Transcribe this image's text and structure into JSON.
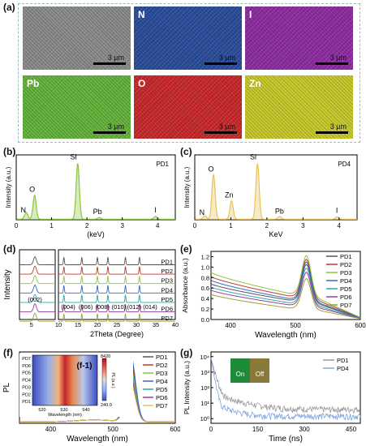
{
  "panel_a": {
    "label": "(a)",
    "tiles": [
      {
        "element": "",
        "color": "#8a8a8a",
        "scale": "3 µm"
      },
      {
        "element": "N",
        "color": "#2a4c9a",
        "scale": "3 µm"
      },
      {
        "element": "I",
        "color": "#8d2ca0",
        "scale": "3 µm"
      },
      {
        "element": "Pb",
        "color": "#63b23a",
        "scale": "3 µm"
      },
      {
        "element": "O",
        "color": "#c8282a",
        "scale": "3 µm"
      },
      {
        "element": "Zn",
        "color": "#c6c828",
        "scale": "3 µm"
      }
    ]
  },
  "panel_labels": {
    "b": "(b)",
    "c": "(c)",
    "d": "(d)",
    "e": "(e)",
    "f": "(f)",
    "g": "(g)"
  },
  "chart_data": [
    {
      "id": "b",
      "type": "line",
      "tag": "PD1",
      "xlabel": "(keV)",
      "ylabel": "Intensity (a.u.)",
      "xlim": [
        0,
        4.5
      ],
      "xticks": [
        0,
        1,
        2,
        3,
        4
      ],
      "color": "#8cc63f",
      "peaks": [
        {
          "x": 0.28,
          "h": 0.12
        },
        {
          "x": 0.52,
          "h": 0.42
        },
        {
          "x": 1.74,
          "h": 0.98
        },
        {
          "x": 2.35,
          "h": 0.03
        },
        {
          "x": 3.94,
          "h": 0.05
        }
      ],
      "annotations": [
        {
          "text": "N",
          "x": 0.2,
          "y": 0.1
        },
        {
          "text": "O",
          "x": 0.45,
          "y": 0.46
        },
        {
          "text": "Si",
          "x": 1.62,
          "y": 1.03
        },
        {
          "text": "Pb",
          "x": 2.3,
          "y": 0.07
        },
        {
          "text": "I",
          "x": 3.94,
          "y": 0.1
        }
      ]
    },
    {
      "id": "c",
      "type": "line",
      "tag": "PD4",
      "xlabel": "KeV",
      "ylabel": "Intensity (a.u.)",
      "xlim": [
        0,
        4.5
      ],
      "xticks": [
        0,
        1,
        2,
        3,
        4
      ],
      "color": "#e8c25a",
      "peaks": [
        {
          "x": 0.28,
          "h": 0.06
        },
        {
          "x": 0.52,
          "h": 0.78
        },
        {
          "x": 1.02,
          "h": 0.32
        },
        {
          "x": 1.74,
          "h": 0.98
        },
        {
          "x": 2.35,
          "h": 0.05
        },
        {
          "x": 3.94,
          "h": 0.04
        }
      ],
      "annotations": [
        {
          "text": "N",
          "x": 0.2,
          "y": 0.06
        },
        {
          "text": "O",
          "x": 0.45,
          "y": 0.82
        },
        {
          "text": "Zn",
          "x": 0.95,
          "y": 0.36
        },
        {
          "text": "Si",
          "x": 1.62,
          "y": 1.03
        },
        {
          "text": "Pb",
          "x": 2.35,
          "y": 0.08
        },
        {
          "text": "I",
          "x": 3.94,
          "y": 0.09
        }
      ]
    },
    {
      "id": "d",
      "type": "line",
      "xlabel": "2Theta (Degree)",
      "ylabel": "Intensity",
      "xlim_left": [
        4,
        7
      ],
      "xlim_right": [
        10,
        40
      ],
      "xticks_left": [
        5
      ],
      "xticks_right": [
        10,
        15,
        20,
        25,
        30,
        35,
        40
      ],
      "peak_left": 5.3,
      "peaks_right": [
        11.4,
        16.0,
        20.0,
        22.7,
        27.2,
        30.8
      ],
      "peak_labels": [
        {
          "text": "(002)",
          "x": 5.3
        },
        {
          "text": "(004)",
          "x": 12.5
        },
        {
          "text": "(006)",
          "x": 17.0
        },
        {
          "text": "(008)",
          "x": 21.3
        },
        {
          "text": "(010)",
          "x": 25.5
        },
        {
          "text": "(012) (014)",
          "x": 31.5
        }
      ],
      "series": [
        {
          "name": "PD1",
          "color": "#555555"
        },
        {
          "name": "PD2",
          "color": "#c0392b"
        },
        {
          "name": "PD3",
          "color": "#8cc63f"
        },
        {
          "name": "PD4",
          "color": "#3a64c8"
        },
        {
          "name": "PD5",
          "color": "#2aa8a8"
        },
        {
          "name": "PD6",
          "color": "#9b3c9b"
        },
        {
          "name": "PD7",
          "color": "#a0a030"
        }
      ]
    },
    {
      "id": "e",
      "type": "line",
      "xlabel": "Wavelength (nm)",
      "ylabel": "Absorbance (a.u.)",
      "xlim": [
        370,
        600
      ],
      "ylim": [
        0,
        1.3
      ],
      "xticks": [
        400,
        500,
        600
      ],
      "yticks": [
        0.0,
        0.2,
        0.4,
        0.6,
        0.8,
        1.0,
        1.2
      ],
      "series": [
        {
          "name": "PD1",
          "color": "#555555",
          "start": 0.68,
          "trough": 0.37,
          "peak": 1.05
        },
        {
          "name": "PD2",
          "color": "#c0392b",
          "start": 0.82,
          "trough": 0.45,
          "peak": 1.15
        },
        {
          "name": "PD3",
          "color": "#8cc63f",
          "start": 0.9,
          "trough": 0.5,
          "peak": 1.22
        },
        {
          "name": "PD4",
          "color": "#3a64c8",
          "start": 0.75,
          "trough": 0.4,
          "peak": 1.1
        },
        {
          "name": "PD5",
          "color": "#2aa8a8",
          "start": 0.62,
          "trough": 0.32,
          "peak": 0.98
        },
        {
          "name": "PD6",
          "color": "#9b3c9b",
          "start": 0.56,
          "trough": 0.28,
          "peak": 0.9
        },
        {
          "name": "PD7",
          "color": "#a0a030",
          "start": 0.48,
          "trough": 0.22,
          "peak": 0.78
        }
      ]
    },
    {
      "id": "f",
      "type": "line",
      "xlabel": "Wavelength (nm)",
      "ylabel": "PL",
      "xlim": [
        350,
        600
      ],
      "xticks": [
        400,
        500,
        600
      ],
      "series": [
        {
          "name": "PD1",
          "color": "#555555",
          "peak": 0.95
        },
        {
          "name": "PD2",
          "color": "#c0392b",
          "peak": 0.88
        },
        {
          "name": "PD3",
          "color": "#8cc63f",
          "peak": 0.8
        },
        {
          "name": "PD4",
          "color": "#3a64c8",
          "peak": 1.0
        },
        {
          "name": "PD5",
          "color": "#2aa8a8",
          "peak": 0.72
        },
        {
          "name": "PD6",
          "color": "#9b3c9b",
          "peak": 0.65
        },
        {
          "name": "PD7",
          "color": "#e8c25a",
          "peak": 0.58
        }
      ],
      "inset": {
        "label": "(f-1)",
        "type": "heatmap",
        "xlabel": "Wavelength (nm)",
        "xticks": [
          520,
          530,
          540
        ],
        "rows": [
          "PD7",
          "PD6",
          "PD5",
          "PD4",
          "PD3",
          "PD2",
          "PD1"
        ],
        "colorbar_label": "PL (a.u.)",
        "colorbar_max": "8420",
        "colorbar_min": "240.0"
      }
    },
    {
      "id": "g",
      "type": "line",
      "xlabel": "Time (ns)",
      "ylabel": "PL Intensity (a.u.)",
      "xlim": [
        0,
        480
      ],
      "yscale": "log",
      "xticks": [
        0,
        150,
        300,
        450
      ],
      "yticks": [
        {
          "v": 1,
          "label": "10⁰"
        },
        {
          "v": 10,
          "label": "10¹"
        },
        {
          "v": 100,
          "label": "10²"
        },
        {
          "v": 1000,
          "label": "10³"
        },
        {
          "v": 10000,
          "label": "10⁴"
        }
      ],
      "series": [
        {
          "name": "PD1",
          "color": "#9a9a9a"
        },
        {
          "name": "PD4",
          "color": "#7fa6e0"
        }
      ],
      "inset_labels": {
        "on": "On",
        "off": "Off"
      }
    }
  ]
}
